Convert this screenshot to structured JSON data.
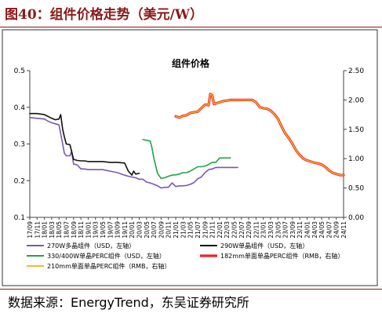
{
  "figure_title": "图40：组件价格走势（美元/W）",
  "source": "数据来源：EnergyTrend，东吴证券研究所",
  "chart_data": {
    "type": "line",
    "title": "组件价格",
    "y_left": {
      "ylim": [
        0.1,
        0.5
      ],
      "ticks": [
        "0.1",
        "0.2",
        "0.3",
        "0.4",
        "0.5"
      ]
    },
    "y_right": {
      "ylim": [
        0.0,
        2.5
      ],
      "ticks": [
        "0.00",
        "0.50",
        "1.00",
        "1.50",
        "2.00",
        "2.50"
      ]
    },
    "x_ticks": [
      "17/09",
      "17/11",
      "18/01",
      "18/03",
      "18/05",
      "18/07",
      "18/09",
      "18/11",
      "19/01",
      "19/03",
      "19/05",
      "19/07",
      "19/09",
      "19/11",
      "20/01",
      "20/03",
      "20/05",
      "20/07",
      "20/09",
      "20/11",
      "21/01",
      "21/03",
      "21/05",
      "21/07",
      "21/09",
      "21/11",
      "22/01",
      "22/03",
      "22/05",
      "22/07",
      "22/09",
      "22/11",
      "23/01",
      "23/03",
      "23/05",
      "23/07",
      "23/09",
      "23/11",
      "24/01",
      "24/03",
      "24/05",
      "24/07",
      "24/09",
      "24/11"
    ],
    "grid": false,
    "legend_position": "bottom",
    "series": [
      {
        "name": "270W多晶组件（USD，左轴）",
        "axis": "left",
        "color": "#7b56b5",
        "width": 1.6,
        "points": [
          [
            "2017-09",
            0.372
          ],
          [
            "2017-11",
            0.37
          ],
          [
            "2018-01",
            0.368
          ],
          [
            "2018-02",
            0.362
          ],
          [
            "2018-03",
            0.358
          ],
          [
            "2018-04",
            0.355
          ],
          [
            "2018-05",
            0.352
          ],
          [
            "2018-06",
            0.3
          ],
          [
            "2018-06-15",
            0.275
          ],
          [
            "2018-07",
            0.268
          ],
          [
            "2018-08",
            0.268
          ],
          [
            "2018-08-15",
            0.28
          ],
          [
            "2018-09",
            0.245
          ],
          [
            "2018-10",
            0.243
          ],
          [
            "2018-11",
            0.232
          ],
          [
            "2018-12",
            0.232
          ],
          [
            "2019-01",
            0.23
          ],
          [
            "2019-03",
            0.23
          ],
          [
            "2019-05",
            0.23
          ],
          [
            "2019-07",
            0.226
          ],
          [
            "2019-09",
            0.222
          ],
          [
            "2019-11",
            0.215
          ],
          [
            "2019-12",
            0.212
          ],
          [
            "2020-01",
            0.21
          ],
          [
            "2020-02",
            0.208
          ],
          [
            "2020-03",
            0.204
          ],
          [
            "2020-04",
            0.204
          ],
          [
            "2020-05",
            0.196
          ],
          [
            "2020-06",
            0.194
          ],
          [
            "2020-07",
            0.19
          ],
          [
            "2020-08",
            0.186
          ],
          [
            "2020-09",
            0.18
          ],
          [
            "2020-10",
            0.182
          ],
          [
            "2020-11",
            0.182
          ],
          [
            "2020-12",
            0.194
          ],
          [
            "2021-01",
            0.184
          ],
          [
            "2021-02",
            0.186
          ],
          [
            "2021-03",
            0.186
          ],
          [
            "2021-04",
            0.187
          ],
          [
            "2021-05",
            0.19
          ],
          [
            "2021-06",
            0.195
          ],
          [
            "2021-07",
            0.205
          ],
          [
            "2021-08",
            0.21
          ],
          [
            "2021-09",
            0.222
          ],
          [
            "2021-10",
            0.23
          ],
          [
            "2021-11",
            0.232
          ],
          [
            "2021-12",
            0.236
          ],
          [
            "2022-02",
            0.236
          ],
          [
            "2022-04",
            0.236
          ],
          [
            "2022-06",
            0.236
          ]
        ]
      },
      {
        "name": "290W单晶组件（USD，左轴）",
        "axis": "left",
        "color": "#111111",
        "width": 1.6,
        "points": [
          [
            "2017-09",
            0.383
          ],
          [
            "2017-11",
            0.383
          ],
          [
            "2018-01",
            0.38
          ],
          [
            "2018-02",
            0.375
          ],
          [
            "2018-03",
            0.37
          ],
          [
            "2018-04",
            0.366
          ],
          [
            "2018-05",
            0.368
          ],
          [
            "2018-05-15",
            0.38
          ],
          [
            "2018-06",
            0.34
          ],
          [
            "2018-06-15",
            0.32
          ],
          [
            "2018-07",
            0.3
          ],
          [
            "2018-08",
            0.298
          ],
          [
            "2018-09",
            0.258
          ],
          [
            "2018-10",
            0.255
          ],
          [
            "2018-11",
            0.254
          ],
          [
            "2018-12",
            0.254
          ],
          [
            "2019-01",
            0.252
          ],
          [
            "2019-03",
            0.252
          ],
          [
            "2019-05",
            0.252
          ],
          [
            "2019-07",
            0.25
          ],
          [
            "2019-09",
            0.25
          ],
          [
            "2019-11",
            0.248
          ],
          [
            "2019-12",
            0.226
          ],
          [
            "2020-01",
            0.215
          ],
          [
            "2020-01-15",
            0.226
          ],
          [
            "2020-02",
            0.218
          ],
          [
            "2020-03",
            0.22
          ]
        ]
      },
      {
        "name": "330/400W单晶PERC组件（USD，左轴）",
        "axis": "left",
        "color": "#1fa34a",
        "width": 1.6,
        "points": [
          [
            "2020-04",
            0.312
          ],
          [
            "2020-05",
            0.31
          ],
          [
            "2020-06",
            0.308
          ],
          [
            "2020-06-15",
            0.29
          ],
          [
            "2020-07",
            0.262
          ],
          [
            "2020-08",
            0.22
          ],
          [
            "2020-09",
            0.206
          ],
          [
            "2020-10",
            0.208
          ],
          [
            "2020-11",
            0.212
          ],
          [
            "2020-12",
            0.215
          ],
          [
            "2021-01",
            0.216
          ],
          [
            "2021-02",
            0.218
          ],
          [
            "2021-03",
            0.222
          ],
          [
            "2021-04",
            0.222
          ],
          [
            "2021-05",
            0.226
          ],
          [
            "2021-06",
            0.232
          ],
          [
            "2021-07",
            0.238
          ],
          [
            "2021-08",
            0.238
          ],
          [
            "2021-09",
            0.24
          ],
          [
            "2021-10",
            0.244
          ],
          [
            "2021-11",
            0.25
          ],
          [
            "2021-12",
            0.25
          ],
          [
            "2022-01",
            0.262
          ],
          [
            "2022-02",
            0.262
          ],
          [
            "2022-04",
            0.262
          ]
        ]
      },
      {
        "name": "182mm单面单晶PERC组件（RMB，右轴）",
        "axis": "right",
        "color": "#ee2222",
        "width": 3.2,
        "points": [
          [
            "2021-01",
            1.72
          ],
          [
            "2021-02",
            1.7
          ],
          [
            "2021-03",
            1.73
          ],
          [
            "2021-04",
            1.74
          ],
          [
            "2021-05",
            1.78
          ],
          [
            "2021-06",
            1.79
          ],
          [
            "2021-07",
            1.8
          ],
          [
            "2021-08",
            1.86
          ],
          [
            "2021-09",
            1.92
          ],
          [
            "2021-10",
            1.91
          ],
          [
            "2021-10-15",
            2.1
          ],
          [
            "2021-11",
            2.08
          ],
          [
            "2021-11-15",
            1.93
          ],
          [
            "2021-12",
            1.94
          ],
          [
            "2022-01",
            1.96
          ],
          [
            "2022-02",
            1.98
          ],
          [
            "2022-04",
            2.0
          ],
          [
            "2022-06",
            2.0
          ],
          [
            "2022-08",
            2.0
          ],
          [
            "2022-10",
            2.0
          ],
          [
            "2022-11",
            1.96
          ],
          [
            "2022-12",
            1.88
          ],
          [
            "2023-01",
            1.86
          ],
          [
            "2023-02",
            1.85
          ],
          [
            "2023-03",
            1.82
          ],
          [
            "2023-04",
            1.76
          ],
          [
            "2023-05",
            1.68
          ],
          [
            "2023-06",
            1.55
          ],
          [
            "2023-07",
            1.43
          ],
          [
            "2023-08",
            1.35
          ],
          [
            "2023-09",
            1.25
          ],
          [
            "2023-10",
            1.14
          ],
          [
            "2023-11",
            1.06
          ],
          [
            "2023-12",
            1.0
          ],
          [
            "2024-01",
            0.97
          ],
          [
            "2024-02",
            0.95
          ],
          [
            "2024-03",
            0.93
          ],
          [
            "2024-04",
            0.92
          ],
          [
            "2024-05",
            0.9
          ],
          [
            "2024-06",
            0.86
          ],
          [
            "2024-07",
            0.8
          ],
          [
            "2024-08",
            0.76
          ],
          [
            "2024-09",
            0.74
          ],
          [
            "2024-10",
            0.72
          ],
          [
            "2024-11",
            0.72
          ]
        ]
      },
      {
        "name": "210mm单面单晶PERC组件（RMB，右轴）",
        "axis": "right",
        "color": "#f5b82e",
        "width": 1.4,
        "points": [
          [
            "2021-01",
            1.72
          ],
          [
            "2021-02",
            1.7
          ],
          [
            "2021-03",
            1.73
          ],
          [
            "2021-04",
            1.74
          ],
          [
            "2021-05",
            1.78
          ],
          [
            "2021-06",
            1.79
          ],
          [
            "2021-07",
            1.8
          ],
          [
            "2021-08",
            1.86
          ],
          [
            "2021-09",
            1.92
          ],
          [
            "2021-10",
            1.91
          ],
          [
            "2021-10-15",
            2.1
          ],
          [
            "2021-11",
            2.08
          ],
          [
            "2021-11-15",
            1.93
          ],
          [
            "2021-12",
            1.94
          ],
          [
            "2022-01",
            1.96
          ],
          [
            "2022-02",
            1.98
          ],
          [
            "2022-04",
            2.0
          ],
          [
            "2022-06",
            2.0
          ],
          [
            "2022-08",
            2.0
          ],
          [
            "2022-10",
            2.0
          ],
          [
            "2022-11",
            1.96
          ],
          [
            "2022-12",
            1.88
          ],
          [
            "2023-01",
            1.86
          ],
          [
            "2023-02",
            1.85
          ],
          [
            "2023-03",
            1.82
          ],
          [
            "2023-04",
            1.76
          ],
          [
            "2023-05",
            1.68
          ],
          [
            "2023-06",
            1.55
          ],
          [
            "2023-07",
            1.43
          ],
          [
            "2023-08",
            1.35
          ],
          [
            "2023-09",
            1.25
          ],
          [
            "2023-10",
            1.14
          ],
          [
            "2023-11",
            1.06
          ],
          [
            "2023-12",
            1.0
          ],
          [
            "2024-01",
            0.97
          ],
          [
            "2024-02",
            0.95
          ],
          [
            "2024-03",
            0.93
          ],
          [
            "2024-04",
            0.92
          ],
          [
            "2024-05",
            0.9
          ],
          [
            "2024-06",
            0.86
          ],
          [
            "2024-07",
            0.8
          ],
          [
            "2024-08",
            0.76
          ],
          [
            "2024-09",
            0.74
          ],
          [
            "2024-10",
            0.72
          ],
          [
            "2024-11",
            0.72
          ]
        ]
      }
    ]
  }
}
